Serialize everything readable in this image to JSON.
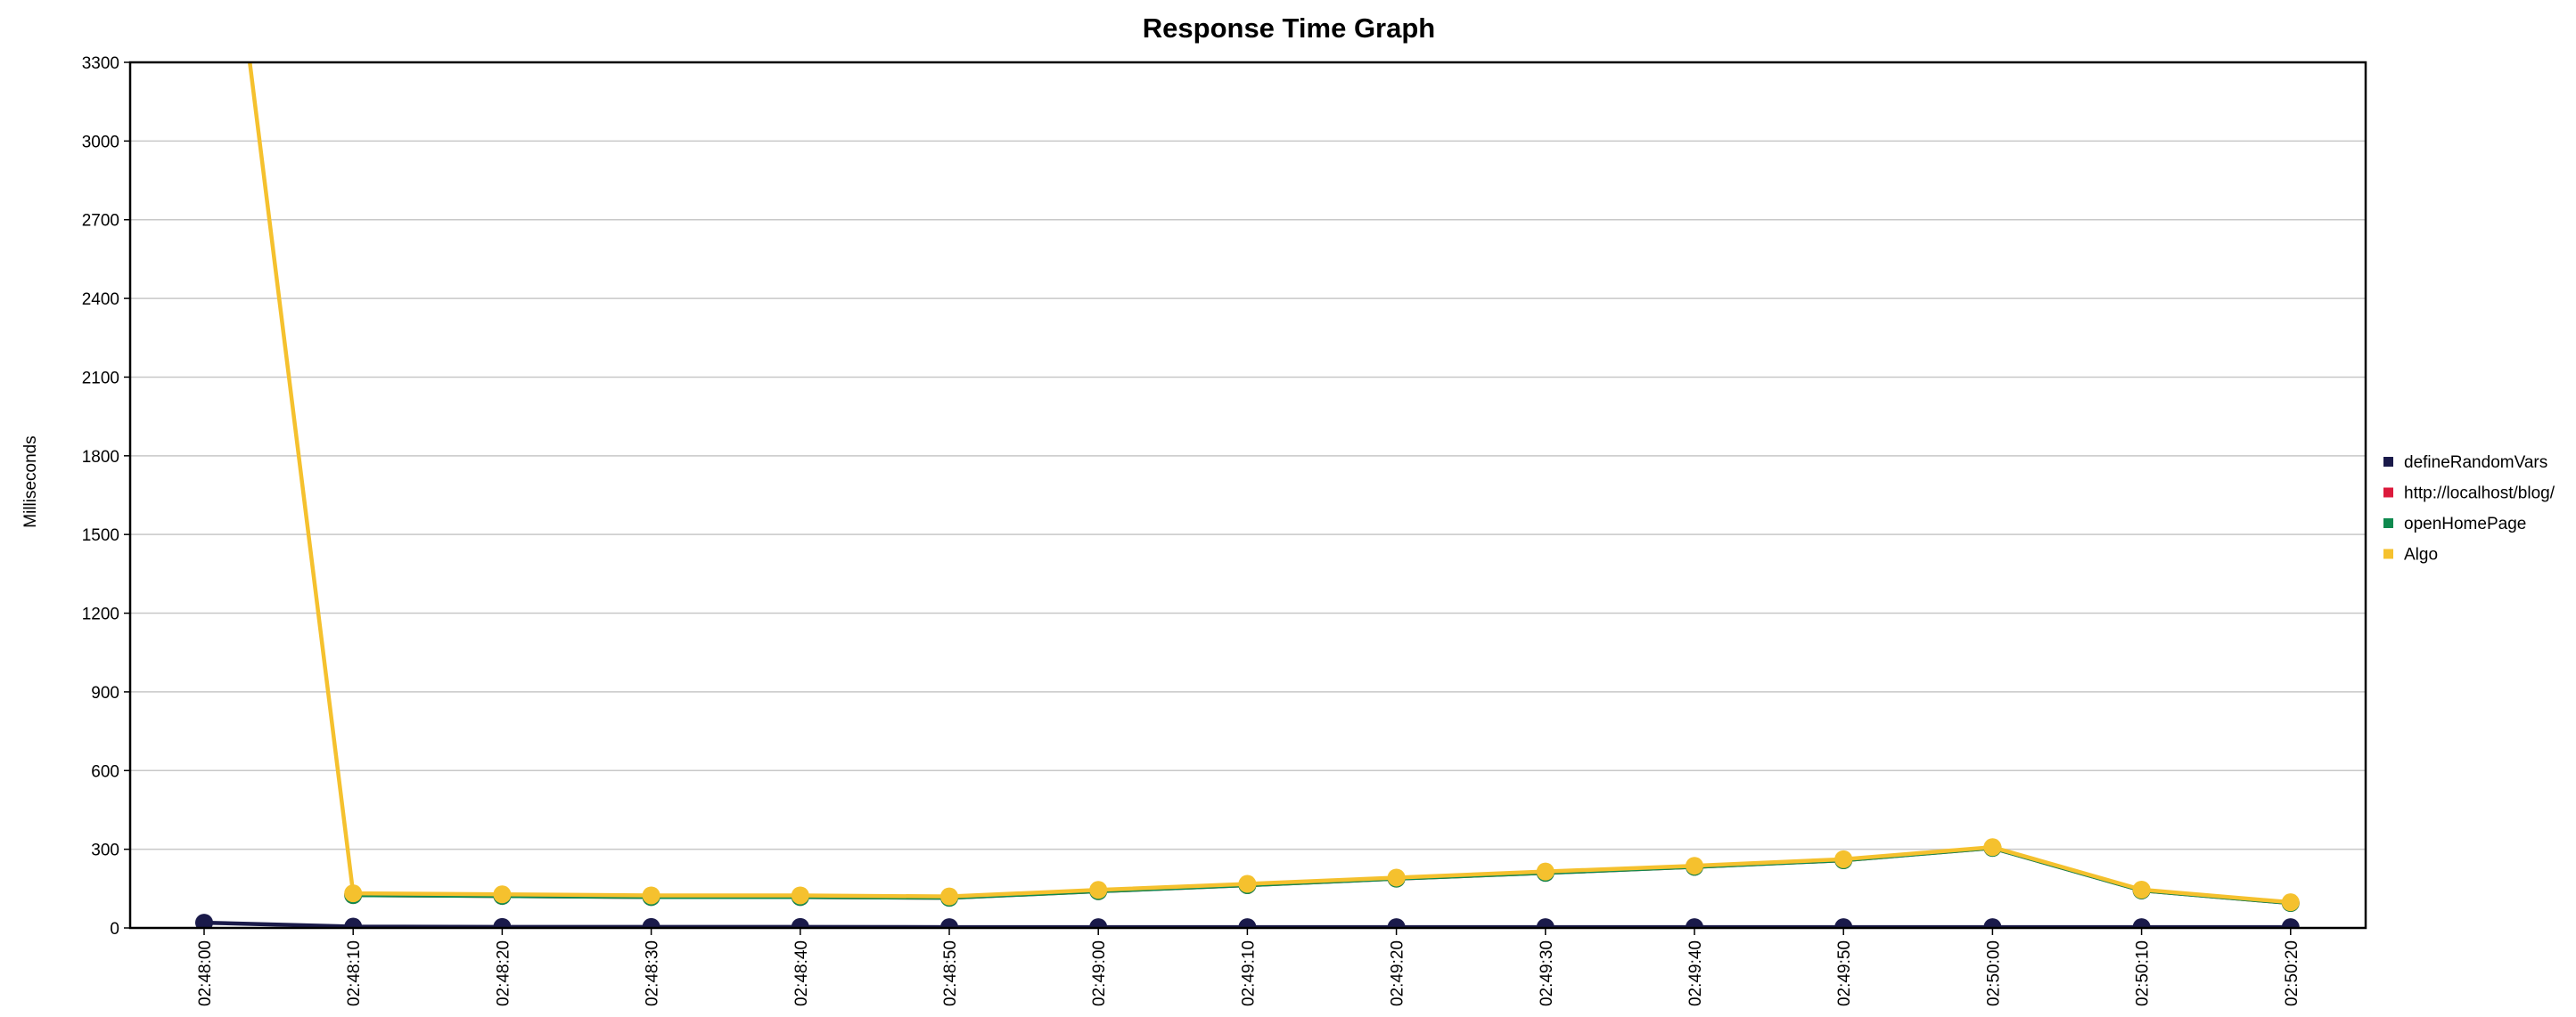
{
  "chart_data": {
    "type": "line",
    "title": "Response Time Graph",
    "xlabel": "",
    "ylabel": "Milliseconds",
    "ylim": [
      0,
      3300
    ],
    "yticks": [
      0,
      300,
      600,
      900,
      1200,
      1500,
      1800,
      2100,
      2400,
      2700,
      3000,
      3300
    ],
    "categories": [
      "02:48:00",
      "02:48:10",
      "02:48:20",
      "02:48:30",
      "02:48:40",
      "02:48:50",
      "02:49:00",
      "02:49:10",
      "02:49:20",
      "02:49:30",
      "02:49:40",
      "02:49:50",
      "02:50:00",
      "02:50:10",
      "02:50:20"
    ],
    "grid": true,
    "legend_position": "right",
    "series": [
      {
        "name": "defineRandomVars",
        "color": "#1a1a4a",
        "values": [
          20,
          5,
          4,
          4,
          4,
          3,
          3,
          3,
          3,
          3,
          3,
          3,
          3,
          3,
          3
        ]
      },
      {
        "name": "http://localhost/blog/",
        "color": "#dc1a3c",
        "values": [
          null,
          125,
          122,
          118,
          118,
          115,
          140,
          163,
          188,
          210,
          233,
          258,
          305,
          143,
          95
        ]
      },
      {
        "name": "openHomePage",
        "color": "#0f8a4f",
        "values": [
          null,
          125,
          122,
          118,
          118,
          115,
          140,
          163,
          188,
          210,
          233,
          258,
          305,
          143,
          95
        ]
      },
      {
        "name": "Algo",
        "color": "#f5c12e",
        "values": [
          4700,
          132,
          128,
          124,
          124,
          120,
          145,
          168,
          192,
          215,
          237,
          262,
          308,
          146,
          98
        ]
      }
    ]
  }
}
